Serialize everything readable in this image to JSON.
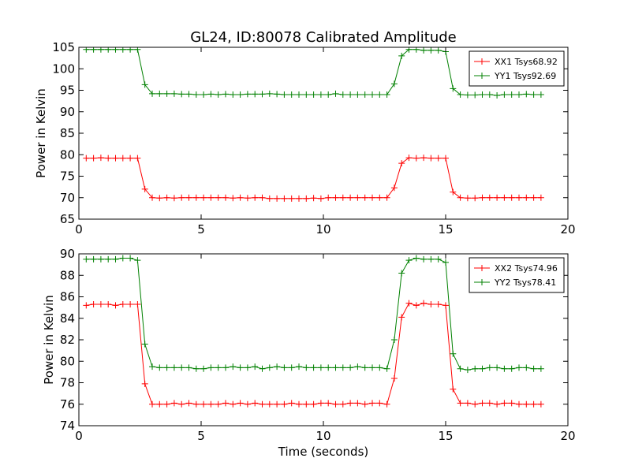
{
  "title": "GL24, ID:80078 Calibrated Amplitude",
  "chart_data": [
    {
      "type": "line",
      "ylabel": "Power in Kelvin",
      "xlabel": "",
      "xlim": [
        0,
        20
      ],
      "ylim": [
        65,
        105
      ],
      "xticks": [
        "0",
        "5",
        "10",
        "15",
        "20"
      ],
      "yticks": [
        "65",
        "70",
        "75",
        "80",
        "85",
        "90",
        "95",
        "100",
        "105"
      ],
      "legend_position": "top-right",
      "x": [
        0.3,
        0.6,
        0.9,
        1.2,
        1.5,
        1.8,
        2.1,
        2.4,
        2.7,
        3.0,
        3.3,
        3.6,
        3.9,
        4.2,
        4.5,
        4.8,
        5.1,
        5.4,
        5.7,
        6.0,
        6.3,
        6.6,
        6.9,
        7.2,
        7.5,
        7.8,
        8.1,
        8.4,
        8.7,
        9.0,
        9.3,
        9.6,
        9.9,
        10.2,
        10.5,
        10.8,
        11.1,
        11.4,
        11.7,
        12.0,
        12.3,
        12.6,
        12.9,
        13.2,
        13.5,
        13.8,
        14.1,
        14.4,
        14.7,
        15.0,
        15.3,
        15.6,
        15.9,
        16.2,
        16.5,
        16.8,
        17.1,
        17.4,
        17.7,
        18.0,
        18.3,
        18.6,
        18.9
      ],
      "series": [
        {
          "name": "XX1 Tsys68.92",
          "color": "#ff0000",
          "values": [
            79.2,
            79.2,
            79.3,
            79.2,
            79.2,
            79.2,
            79.2,
            79.2,
            72.0,
            70.0,
            69.9,
            70.0,
            69.9,
            70.0,
            70.0,
            70.0,
            70.0,
            70.0,
            70.0,
            70.0,
            69.9,
            70.0,
            69.9,
            70.0,
            70.0,
            69.8,
            69.8,
            69.8,
            69.8,
            69.8,
            69.8,
            69.9,
            69.8,
            70.0,
            70.0,
            70.0,
            70.0,
            70.0,
            70.0,
            70.0,
            70.0,
            70.0,
            72.3,
            78.0,
            79.3,
            79.2,
            79.3,
            79.2,
            79.2,
            79.2,
            71.3,
            70.0,
            69.9,
            69.9,
            70.0,
            70.0,
            70.0,
            70.0,
            70.0,
            70.0,
            70.0,
            70.0,
            70.0
          ]
        },
        {
          "name": "YY1 Tsys92.69",
          "color": "#008000",
          "values": [
            104.5,
            104.5,
            104.5,
            104.5,
            104.5,
            104.5,
            104.5,
            104.5,
            96.3,
            94.2,
            94.2,
            94.2,
            94.2,
            94.1,
            94.1,
            94.0,
            94.0,
            94.1,
            94.0,
            94.1,
            94.0,
            94.0,
            94.1,
            94.1,
            94.1,
            94.2,
            94.1,
            94.0,
            94.0,
            94.0,
            94.0,
            94.0,
            94.0,
            94.0,
            94.2,
            94.0,
            94.0,
            94.0,
            94.0,
            94.0,
            94.0,
            94.0,
            96.5,
            103.0,
            104.5,
            104.5,
            104.3,
            104.3,
            104.3,
            104.0,
            95.4,
            94.0,
            93.9,
            93.9,
            94.0,
            94.0,
            93.8,
            94.0,
            94.0,
            94.0,
            94.1,
            94.0,
            94.0
          ]
        }
      ]
    },
    {
      "type": "line",
      "ylabel": "Power in Kelvin",
      "xlabel": "Time (seconds)",
      "xlim": [
        0,
        20
      ],
      "ylim": [
        74,
        90
      ],
      "xticks": [
        "0",
        "5",
        "10",
        "15",
        "20"
      ],
      "yticks": [
        "74",
        "76",
        "78",
        "80",
        "82",
        "84",
        "86",
        "88",
        "90"
      ],
      "legend_position": "top-right",
      "x": [
        0.3,
        0.6,
        0.9,
        1.2,
        1.5,
        1.8,
        2.1,
        2.4,
        2.7,
        3.0,
        3.3,
        3.6,
        3.9,
        4.2,
        4.5,
        4.8,
        5.1,
        5.4,
        5.7,
        6.0,
        6.3,
        6.6,
        6.9,
        7.2,
        7.5,
        7.8,
        8.1,
        8.4,
        8.7,
        9.0,
        9.3,
        9.6,
        9.9,
        10.2,
        10.5,
        10.8,
        11.1,
        11.4,
        11.7,
        12.0,
        12.3,
        12.6,
        12.9,
        13.2,
        13.5,
        13.8,
        14.1,
        14.4,
        14.7,
        15.0,
        15.3,
        15.6,
        15.9,
        16.2,
        16.5,
        16.8,
        17.1,
        17.4,
        17.7,
        18.0,
        18.3,
        18.6,
        18.9
      ],
      "series": [
        {
          "name": "XX2 Tsys74.96",
          "color": "#ff0000",
          "values": [
            85.2,
            85.3,
            85.3,
            85.3,
            85.2,
            85.3,
            85.3,
            85.3,
            77.9,
            76.0,
            76.0,
            76.0,
            76.1,
            76.0,
            76.1,
            76.0,
            76.0,
            76.0,
            76.0,
            76.1,
            76.0,
            76.1,
            76.0,
            76.1,
            76.0,
            76.0,
            76.0,
            76.0,
            76.1,
            76.0,
            76.0,
            76.0,
            76.1,
            76.1,
            76.0,
            76.0,
            76.1,
            76.1,
            76.0,
            76.1,
            76.1,
            76.0,
            78.4,
            84.1,
            85.4,
            85.2,
            85.4,
            85.3,
            85.3,
            85.2,
            77.4,
            76.1,
            76.1,
            76.0,
            76.1,
            76.1,
            76.0,
            76.1,
            76.1,
            76.0,
            76.0,
            76.0,
            76.0
          ]
        },
        {
          "name": "YY2 Tsys78.41",
          "color": "#008000",
          "values": [
            89.5,
            89.5,
            89.5,
            89.5,
            89.5,
            89.6,
            89.6,
            89.4,
            81.6,
            79.5,
            79.4,
            79.4,
            79.4,
            79.4,
            79.4,
            79.3,
            79.3,
            79.4,
            79.4,
            79.4,
            79.5,
            79.4,
            79.4,
            79.5,
            79.3,
            79.4,
            79.5,
            79.4,
            79.4,
            79.5,
            79.4,
            79.4,
            79.4,
            79.4,
            79.4,
            79.4,
            79.4,
            79.5,
            79.4,
            79.4,
            79.4,
            79.3,
            82.0,
            88.2,
            89.4,
            89.6,
            89.5,
            89.5,
            89.5,
            89.2,
            80.7,
            79.3,
            79.2,
            79.3,
            79.3,
            79.4,
            79.4,
            79.3,
            79.3,
            79.4,
            79.4,
            79.3,
            79.3
          ]
        }
      ]
    }
  ]
}
